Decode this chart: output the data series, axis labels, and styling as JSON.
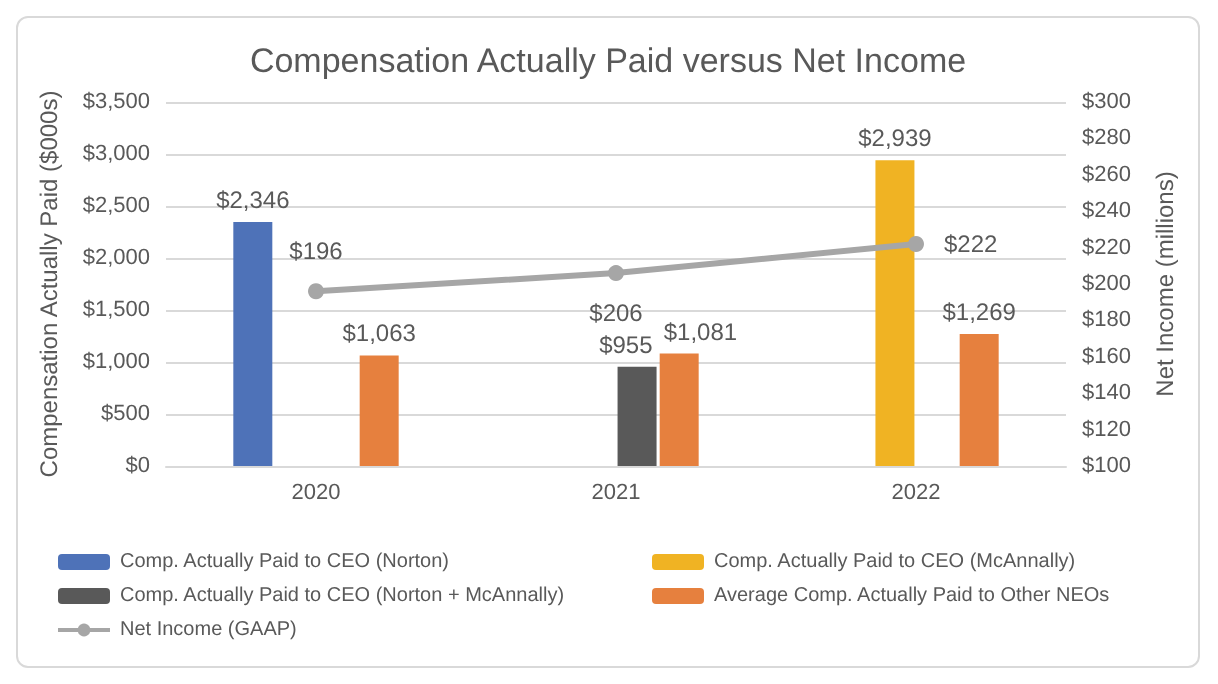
{
  "chart_data": {
    "type": "bar",
    "title": "Compensation Actually Paid versus Net Income",
    "ylabel": "Compensation Actually Paid ($000s)",
    "y2label": "Net Income (millions)",
    "categories": [
      "2020",
      "2021",
      "2022"
    ],
    "series": [
      {
        "name": "Comp. Actually Paid to CEO (Norton)",
        "color": "#4e72b8",
        "values": [
          2346,
          null,
          null
        ],
        "value_labels": [
          "$2,346",
          null,
          null
        ]
      },
      {
        "name": "Comp. Actually Paid to CEO (McAnnally)",
        "color": "#f0b323",
        "values": [
          null,
          null,
          2939
        ],
        "value_labels": [
          null,
          null,
          "$2,939"
        ]
      },
      {
        "name": "Comp. Actually Paid to CEO (Norton + McAnnally)",
        "color": "#595959",
        "values": [
          null,
          955,
          null
        ],
        "value_labels": [
          null,
          "$955",
          null
        ]
      },
      {
        "name": "Average Comp. Actually Paid to Other NEOs",
        "color": "#e6803e",
        "values": [
          1063,
          1081,
          1269
        ],
        "value_labels": [
          "$1,063",
          "$1,081",
          "$1,269"
        ]
      },
      {
        "name": "Net Income (GAAP)",
        "type": "line",
        "axis": "y2",
        "color": "#a6a6a6",
        "marker": "circle",
        "values": [
          196,
          206,
          222
        ],
        "value_labels": [
          "$196",
          "$206",
          "$222"
        ]
      }
    ],
    "ylim": [
      0,
      3500
    ],
    "yticks": [
      {
        "value": 0,
        "label": "$0"
      },
      {
        "value": 500,
        "label": "$500"
      },
      {
        "value": 1000,
        "label": "$1,000"
      },
      {
        "value": 1500,
        "label": "$1,500"
      },
      {
        "value": 2000,
        "label": "$2,000"
      },
      {
        "value": 2500,
        "label": "$2,500"
      },
      {
        "value": 3000,
        "label": "$3,000"
      },
      {
        "value": 3500,
        "label": "$3,500"
      }
    ],
    "y2lim": [
      100,
      300
    ],
    "y2ticks": [
      {
        "value": 100,
        "label": "$100"
      },
      {
        "value": 120,
        "label": "$120"
      },
      {
        "value": 140,
        "label": "$140"
      },
      {
        "value": 160,
        "label": "$160"
      },
      {
        "value": 180,
        "label": "$180"
      },
      {
        "value": 200,
        "label": "$200"
      },
      {
        "value": 220,
        "label": "$220"
      },
      {
        "value": 240,
        "label": "$240"
      },
      {
        "value": 260,
        "label": "$260"
      },
      {
        "value": 280,
        "label": "$280"
      },
      {
        "value": 300,
        "label": "$300"
      }
    ],
    "grid": "y",
    "legend": "bottom"
  }
}
